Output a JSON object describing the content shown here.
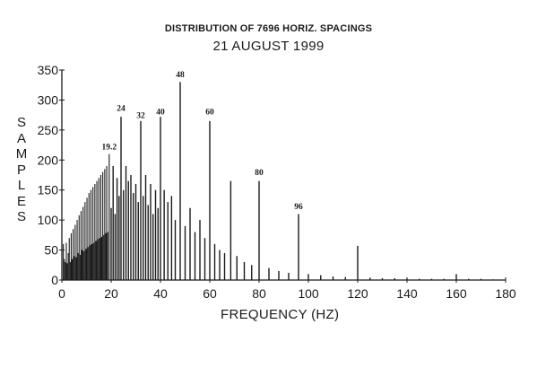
{
  "chart_data": {
    "type": "bar",
    "title": "DISTRIBUTION OF 7696 HORIZ. SPACINGS",
    "subtitle": "21 AUGUST 1999",
    "xlabel": "FREQUENCY (HZ)",
    "ylabel": "SAMPLES",
    "xlim": [
      0,
      180
    ],
    "ylim": [
      0,
      350
    ],
    "xticks": [
      "0",
      "20",
      "40",
      "60",
      "80",
      "100",
      "120",
      "140",
      "160",
      "180"
    ],
    "yticks": [
      "0",
      "50",
      "100",
      "150",
      "200",
      "250",
      "300",
      "350"
    ],
    "grid": false,
    "annotations": [
      {
        "text": "19.2",
        "x": 19.2,
        "y": 218
      },
      {
        "text": "24",
        "x": 24,
        "y": 282
      },
      {
        "text": "32",
        "x": 32,
        "y": 270
      },
      {
        "text": "40",
        "x": 40,
        "y": 276
      },
      {
        "text": "48",
        "x": 48,
        "y": 338
      },
      {
        "text": "60",
        "x": 60,
        "y": 276
      },
      {
        "text": "80",
        "x": 80,
        "y": 175
      },
      {
        "text": "96",
        "x": 96,
        "y": 118
      }
    ],
    "x": [
      0.6,
      1.0,
      1.4,
      1.8,
      2.2,
      2.6,
      3.0,
      3.4,
      3.8,
      4.2,
      4.6,
      5.0,
      5.4,
      5.8,
      6.2,
      6.6,
      7.0,
      7.4,
      7.8,
      8.2,
      8.6,
      9.0,
      9.4,
      9.8,
      10.2,
      10.6,
      11.0,
      11.4,
      11.8,
      12.2,
      12.6,
      13.0,
      13.4,
      13.8,
      14.2,
      14.6,
      15.0,
      15.4,
      15.8,
      16.2,
      16.6,
      17.0,
      17.4,
      17.8,
      18.2,
      18.6,
      19.2,
      20.0,
      20.8,
      21.6,
      22.4,
      23.2,
      24.0,
      25.0,
      26.0,
      27.0,
      28.0,
      29.0,
      30.0,
      31.0,
      32.0,
      33.0,
      34.0,
      35.0,
      36.0,
      37.0,
      38.0,
      39.0,
      40.0,
      41.5,
      43.0,
      44.5,
      46.0,
      48.0,
      50.0,
      52.0,
      54.0,
      56.0,
      58.0,
      60.0,
      62.0,
      64.0,
      66.0,
      68.5,
      71.0,
      74.0,
      77.0,
      80.0,
      84.0,
      88.0,
      92.0,
      96.0,
      100.0,
      105.0,
      110.0,
      115.0,
      120.0,
      125.0,
      130.0,
      135.0,
      140.0,
      145.0,
      150.0,
      155.0,
      160.0,
      165.0,
      170.0,
      175.0
    ],
    "values": [
      60,
      35,
      30,
      62,
      28,
      45,
      70,
      30,
      78,
      35,
      85,
      40,
      92,
      38,
      100,
      45,
      108,
      42,
      115,
      50,
      122,
      48,
      130,
      52,
      137,
      55,
      145,
      58,
      150,
      60,
      155,
      62,
      160,
      65,
      165,
      68,
      170,
      70,
      175,
      72,
      180,
      75,
      185,
      78,
      190,
      80,
      210,
      120,
      190,
      110,
      170,
      140,
      272,
      150,
      190,
      165,
      175,
      145,
      160,
      130,
      265,
      140,
      175,
      125,
      160,
      110,
      150,
      120,
      272,
      150,
      130,
      140,
      100,
      330,
      90,
      120,
      80,
      100,
      70,
      265,
      60,
      50,
      45,
      165,
      40,
      30,
      25,
      165,
      20,
      15,
      12,
      110,
      10,
      8,
      6,
      5,
      57,
      4,
      3,
      3,
      2,
      2,
      2,
      2,
      10,
      2,
      2,
      1
    ]
  },
  "colors": {
    "ink": "#1a1a1a",
    "background": "#ffffff"
  }
}
